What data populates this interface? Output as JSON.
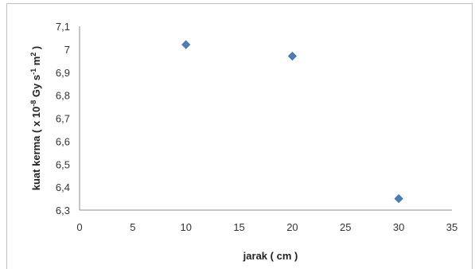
{
  "chart_data": {
    "type": "scatter",
    "title": "",
    "xlabel": "jarak ( cm )",
    "ylabel": {
      "main": "kuat kerma ( x 10",
      "exp1": "-8",
      "mid1": " Gy s",
      "exp2": "-1",
      "mid2": " m",
      "exp3": "2",
      "end": " )"
    },
    "xlim": [
      0,
      35
    ],
    "ylim": [
      6.3,
      7.1
    ],
    "x_ticks": [
      0,
      5,
      10,
      15,
      20,
      25,
      30,
      35
    ],
    "y_ticks": [
      6.3,
      6.4,
      6.5,
      6.6,
      6.7,
      6.8,
      6.9,
      7,
      7.1
    ],
    "y_tick_labels": [
      "6,3",
      "6,4",
      "6,5",
      "6,6",
      "6,7",
      "6,8",
      "6,9",
      "7",
      "7,1"
    ],
    "grid": false,
    "legend": "none",
    "marker": "diamond",
    "marker_color": "#4a7ebb",
    "points": [
      {
        "x": 10,
        "y": 7.02
      },
      {
        "x": 20,
        "y": 6.97
      },
      {
        "x": 30,
        "y": 6.35
      }
    ]
  }
}
